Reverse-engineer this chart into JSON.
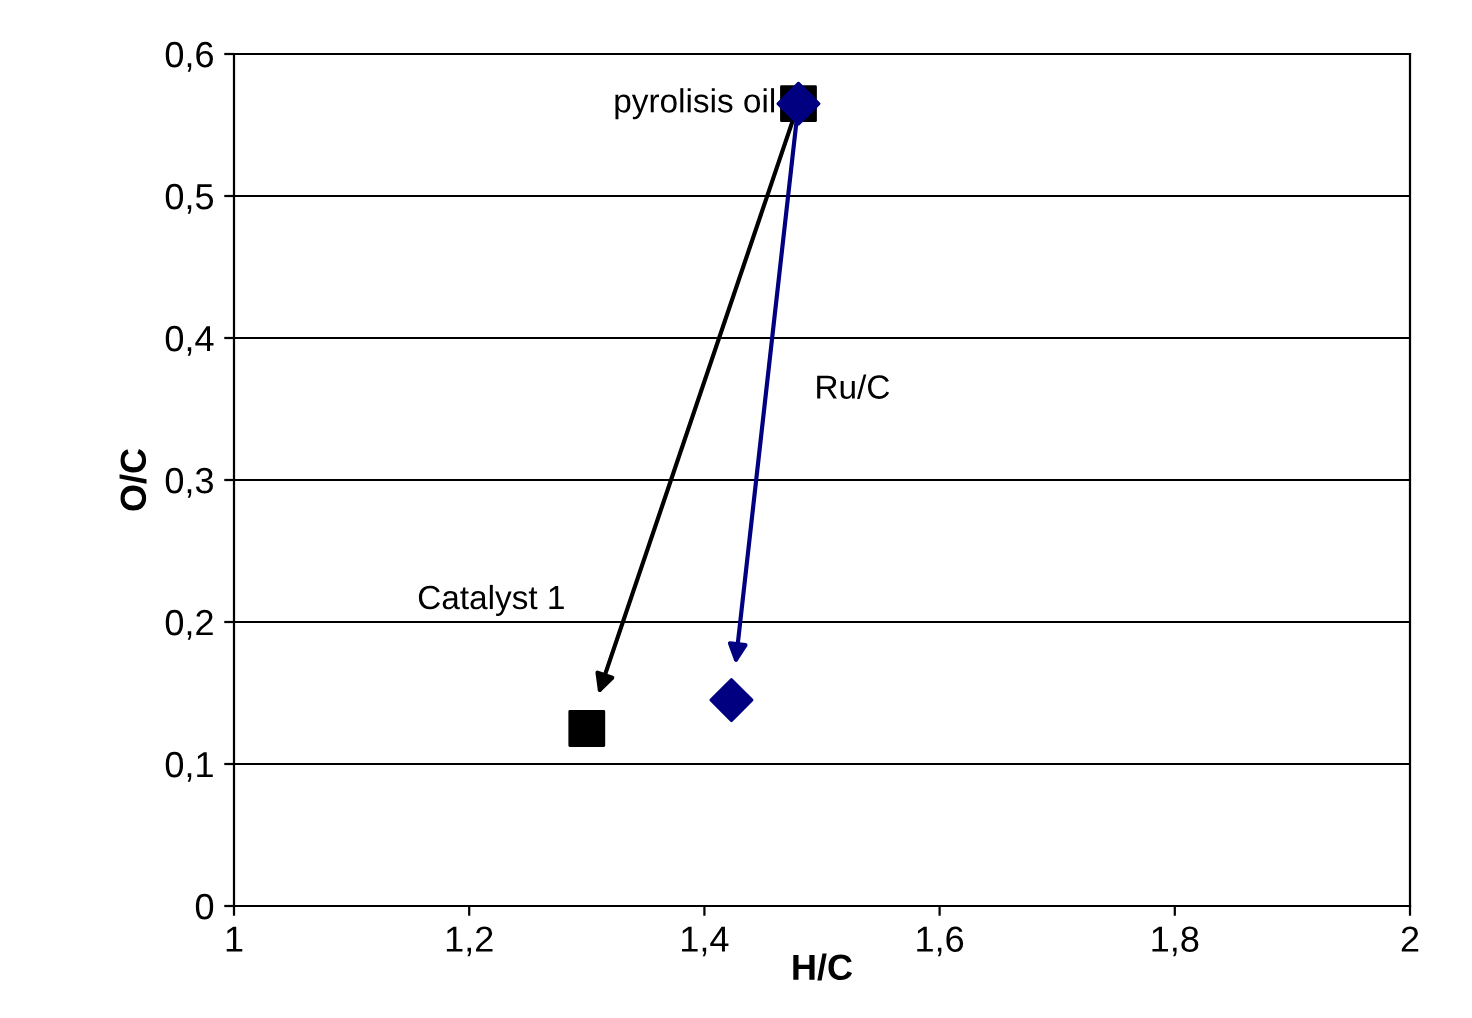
{
  "chart_data": {
    "type": "scatter",
    "xlabel": "H/C",
    "ylabel": "O/C",
    "series": [
      {
        "color": "#000000",
        "marker": "square",
        "x": [
          1.48,
          1.3
        ],
        "values": [
          0.565,
          0.125
        ]
      },
      {
        "color": "#000080",
        "marker": "diamond",
        "x": [
          1.48,
          1.423
        ],
        "values": [
          0.565,
          0.145
        ]
      }
    ],
    "annotations": [
      {
        "text": "pyrolisis oil",
        "x": 1.48,
        "y": 0.565
      },
      "Catalyst 1",
      "Ru/C"
    ],
    "xlim": [
      1,
      2
    ],
    "xticks": [
      1,
      {
        "value": 1.2,
        "label": "1,2"
      },
      {
        "value": 1.4,
        "label": "1,4"
      },
      {
        "value": 1.6,
        "label": "1,6"
      },
      {
        "value": 1.8,
        "label": "1,8"
      },
      2
    ],
    "ylim": [
      0,
      0.6
    ],
    "yticks": [
      0,
      {
        "value": 0.1,
        "label": "0,1"
      },
      {
        "value": 0.2,
        "label": "0,2"
      },
      {
        "value": 0.3,
        "label": "0,3"
      },
      {
        "value": 0.4,
        "label": "0,4"
      },
      {
        "value": 0.5,
        "label": "0,5"
      },
      {
        "value": 0.6,
        "label": "0,6"
      }
    ],
    "grid": "y"
  }
}
